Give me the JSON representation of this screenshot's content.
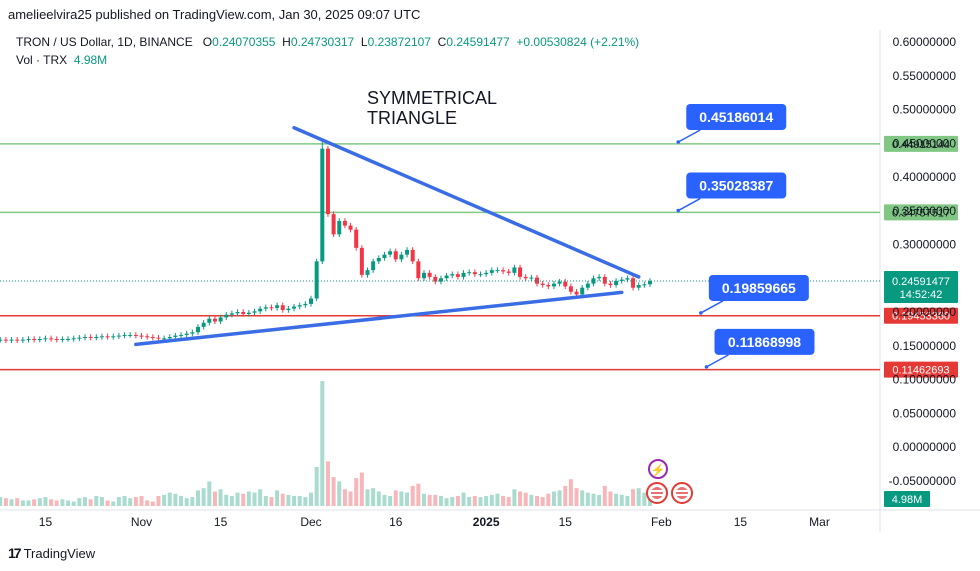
{
  "header": {
    "text": "amelieelvira25 published on TradingView.com, Jan 30, 2025 09:07 UTC"
  },
  "symbol": {
    "name": "TRON / US Dollar, 1D, BINANCE",
    "o_label": "O",
    "o": "0.24070355",
    "h_label": "H",
    "h": "0.24730317",
    "l_label": "L",
    "l": "0.23872107",
    "c_label": "C",
    "c": "0.24591477",
    "change": "+0.00530824 (+2.21%)"
  },
  "volume_legend": {
    "label": "Vol · TRX",
    "value": "4.98M"
  },
  "footer": {
    "brand": "TradingView",
    "logo": "tradingview-logo"
  },
  "colors": {
    "up": "#089981",
    "down": "#f23645",
    "green_line": "#81c784",
    "red_line": "#e53935",
    "callout": "#2962ff",
    "trend": "#3a6de5"
  },
  "chart_data": {
    "type": "candlestick",
    "title": "SYMMETRICAL TRIANGLE",
    "ylim": [
      -0.05,
      0.62
    ],
    "y_ticks": [
      "0.60000000",
      "0.55000000",
      "0.50000000",
      "0.45000000",
      "0.40000000",
      "0.35000000",
      "0.30000000",
      "0.25000000",
      "0.20000000",
      "0.15000000",
      "0.10000000",
      "0.05000000",
      "0.00000000",
      "-0.05000000"
    ],
    "x_ticks": [
      {
        "label": "15",
        "date": "2024-10-15"
      },
      {
        "label": "Nov",
        "date": "2024-11-01"
      },
      {
        "label": "15",
        "date": "2024-11-15"
      },
      {
        "label": "Dec",
        "date": "2024-12-01"
      },
      {
        "label": "16",
        "date": "2024-12-16"
      },
      {
        "label": "2025",
        "date": "2025-01-01"
      },
      {
        "label": "15",
        "date": "2025-01-15"
      },
      {
        "label": "Feb",
        "date": "2025-02-01"
      },
      {
        "label": "15",
        "date": "2025-02-15"
      },
      {
        "label": "Mar",
        "date": "2025-03-01"
      }
    ],
    "dates": [
      "2024-10-07",
      "2024-10-08",
      "2024-10-09",
      "2024-10-10",
      "2024-10-11",
      "2024-10-12",
      "2024-10-13",
      "2024-10-14",
      "2024-10-15",
      "2024-10-16",
      "2024-10-17",
      "2024-10-18",
      "2024-10-19",
      "2024-10-20",
      "2024-10-21",
      "2024-10-22",
      "2024-10-23",
      "2024-10-24",
      "2024-10-25",
      "2024-10-26",
      "2024-10-27",
      "2024-10-28",
      "2024-10-29",
      "2024-10-30",
      "2024-10-31",
      "2024-11-01",
      "2024-11-02",
      "2024-11-03",
      "2024-11-04",
      "2024-11-05",
      "2024-11-06",
      "2024-11-07",
      "2024-11-08",
      "2024-11-09",
      "2024-11-10",
      "2024-11-11",
      "2024-11-12",
      "2024-11-13",
      "2024-11-14",
      "2024-11-15",
      "2024-11-16",
      "2024-11-17",
      "2024-11-18",
      "2024-11-19",
      "2024-11-20",
      "2024-11-21",
      "2024-11-22",
      "2024-11-23",
      "2024-11-24",
      "2024-11-25",
      "2024-11-26",
      "2024-11-27",
      "2024-11-28",
      "2024-11-29",
      "2024-11-30",
      "2024-12-01",
      "2024-12-02",
      "2024-12-03",
      "2024-12-04",
      "2024-12-05",
      "2024-12-06",
      "2024-12-07",
      "2024-12-08",
      "2024-12-09",
      "2024-12-10",
      "2024-12-11",
      "2024-12-12",
      "2024-12-13",
      "2024-12-14",
      "2024-12-15",
      "2024-12-16",
      "2024-12-17",
      "2024-12-18",
      "2024-12-19",
      "2024-12-20",
      "2024-12-21",
      "2024-12-22",
      "2024-12-23",
      "2024-12-24",
      "2024-12-25",
      "2024-12-26",
      "2024-12-27",
      "2024-12-28",
      "2024-12-29",
      "2024-12-30",
      "2024-12-31",
      "2025-01-01",
      "2025-01-02",
      "2025-01-03",
      "2025-01-04",
      "2025-01-05",
      "2025-01-06",
      "2025-01-07",
      "2025-01-08",
      "2025-01-09",
      "2025-01-10",
      "2025-01-11",
      "2025-01-12",
      "2025-01-13",
      "2025-01-14",
      "2025-01-15",
      "2025-01-16",
      "2025-01-17",
      "2025-01-18",
      "2025-01-19",
      "2025-01-20",
      "2025-01-21",
      "2025-01-22",
      "2025-01-23",
      "2025-01-24",
      "2025-01-25",
      "2025-01-26",
      "2025-01-27",
      "2025-01-28",
      "2025-01-29",
      "2025-01-30"
    ],
    "close": [
      0.159,
      0.158,
      0.159,
      0.158,
      0.159,
      0.16,
      0.159,
      0.16,
      0.161,
      0.16,
      0.159,
      0.16,
      0.16,
      0.161,
      0.162,
      0.163,
      0.162,
      0.163,
      0.164,
      0.163,
      0.164,
      0.165,
      0.166,
      0.166,
      0.165,
      0.164,
      0.163,
      0.162,
      0.161,
      0.161,
      0.163,
      0.165,
      0.166,
      0.168,
      0.17,
      0.178,
      0.184,
      0.19,
      0.186,
      0.192,
      0.196,
      0.198,
      0.2,
      0.197,
      0.199,
      0.201,
      0.205,
      0.207,
      0.206,
      0.21,
      0.203,
      0.205,
      0.208,
      0.21,
      0.212,
      0.22,
      0.275,
      0.442,
      0.345,
      0.315,
      0.335,
      0.328,
      0.322,
      0.295,
      0.255,
      0.262,
      0.275,
      0.28,
      0.285,
      0.29,
      0.278,
      0.285,
      0.292,
      0.275,
      0.25,
      0.258,
      0.252,
      0.245,
      0.25,
      0.254,
      0.256,
      0.252,
      0.258,
      0.259,
      0.256,
      0.256,
      0.258,
      0.262,
      0.262,
      0.26,
      0.258,
      0.266,
      0.252,
      0.25,
      0.251,
      0.242,
      0.24,
      0.238,
      0.242,
      0.245,
      0.238,
      0.23,
      0.226,
      0.236,
      0.242,
      0.25,
      0.252,
      0.242,
      0.24,
      0.246,
      0.248,
      0.25,
      0.236,
      0.24,
      0.241,
      0.246
    ],
    "volume": [
      0.8,
      0.7,
      0.6,
      0.7,
      0.5,
      0.5,
      0.6,
      0.7,
      0.8,
      0.6,
      0.5,
      0.6,
      0.5,
      0.4,
      0.7,
      0.8,
      0.6,
      0.9,
      0.8,
      0.5,
      0.4,
      0.8,
      0.9,
      0.7,
      0.8,
      0.9,
      0.5,
      0.4,
      0.9,
      1.0,
      1.2,
      1.1,
      0.9,
      0.7,
      0.8,
      1.4,
      1.6,
      2.2,
      1.3,
      1.5,
      1.0,
      0.9,
      1.2,
      1.1,
      1.3,
      1.2,
      1.5,
      0.9,
      0.8,
      1.4,
      1.1,
      1.0,
      0.9,
      0.9,
      0.8,
      1.2,
      3.5,
      11.2,
      4.0,
      2.6,
      2.2,
      1.5,
      1.3,
      2.5,
      3.0,
      1.5,
      1.6,
      1.3,
      1.0,
      0.9,
      1.4,
      1.3,
      1.2,
      1.8,
      2.0,
      1.1,
      1.0,
      1.0,
      0.9,
      0.7,
      0.8,
      0.9,
      1.2,
      0.8,
      0.9,
      0.8,
      0.9,
      1.0,
      1.1,
      0.9,
      0.8,
      1.5,
      1.3,
      1.2,
      1.0,
      0.9,
      0.8,
      1.1,
      1.3,
      1.4,
      1.8,
      2.4,
      1.6,
      1.4,
      1.2,
      1.1,
      1.0,
      1.8,
      1.3,
      1.1,
      1.0,
      0.9,
      1.5,
      1.6,
      1.2,
      0.9
    ],
    "horizontal_lines": [
      {
        "value": 0.44915144,
        "label": "0.44915144",
        "color": "#81c784"
      },
      {
        "value": 0.34757517,
        "label": "0.34757517",
        "color": "#81c784"
      },
      {
        "value": 0.1945336,
        "label": "0.19453360",
        "color": "#e53935"
      },
      {
        "value": 0.11462693,
        "label": "0.11462693",
        "color": "#e53935"
      }
    ],
    "callouts": [
      {
        "label": "0.45186014",
        "value": 0.45186014,
        "date": "2025-02-04"
      },
      {
        "label": "0.35028387",
        "value": 0.35028387,
        "date": "2025-02-04"
      },
      {
        "label": "0.19859665",
        "value": 0.19859665,
        "date": "2025-02-08"
      },
      {
        "label": "0.11868998",
        "value": 0.11868998,
        "date": "2025-02-09"
      }
    ],
    "trendlines": [
      {
        "from": {
          "date": "2024-11-28",
          "value": 0.473
        },
        "to": {
          "date": "2025-01-28",
          "value": 0.252
        }
      },
      {
        "from": {
          "date": "2024-10-31",
          "value": 0.152
        },
        "to": {
          "date": "2025-01-25",
          "value": 0.229
        }
      }
    ],
    "last_price": {
      "value": 0.24591477,
      "label": "0.24591477",
      "countdown": "14:52:42"
    },
    "volume_badge": "4.98M"
  }
}
